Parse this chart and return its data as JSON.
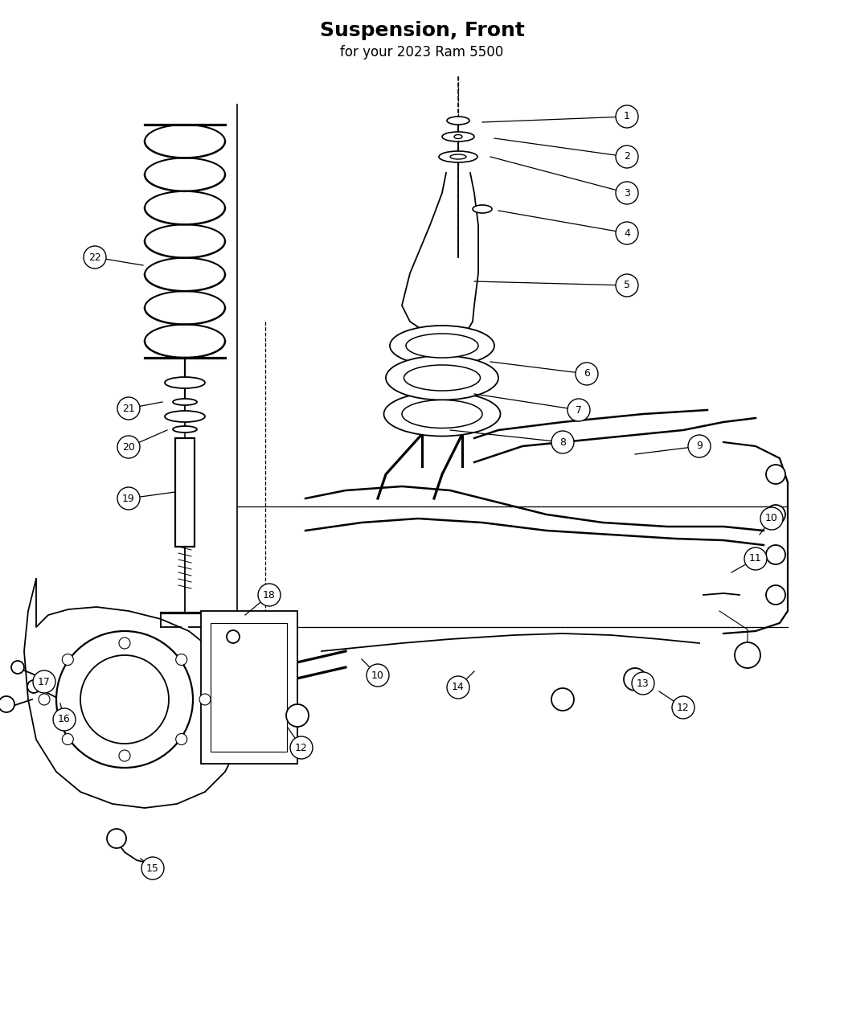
{
  "title": "Suspension, Front",
  "subtitle": "for your 2023 Ram 5500",
  "bg_color": "#ffffff",
  "line_color": "#000000",
  "fig_width": 10.5,
  "fig_height": 12.75,
  "dpi": 100
}
